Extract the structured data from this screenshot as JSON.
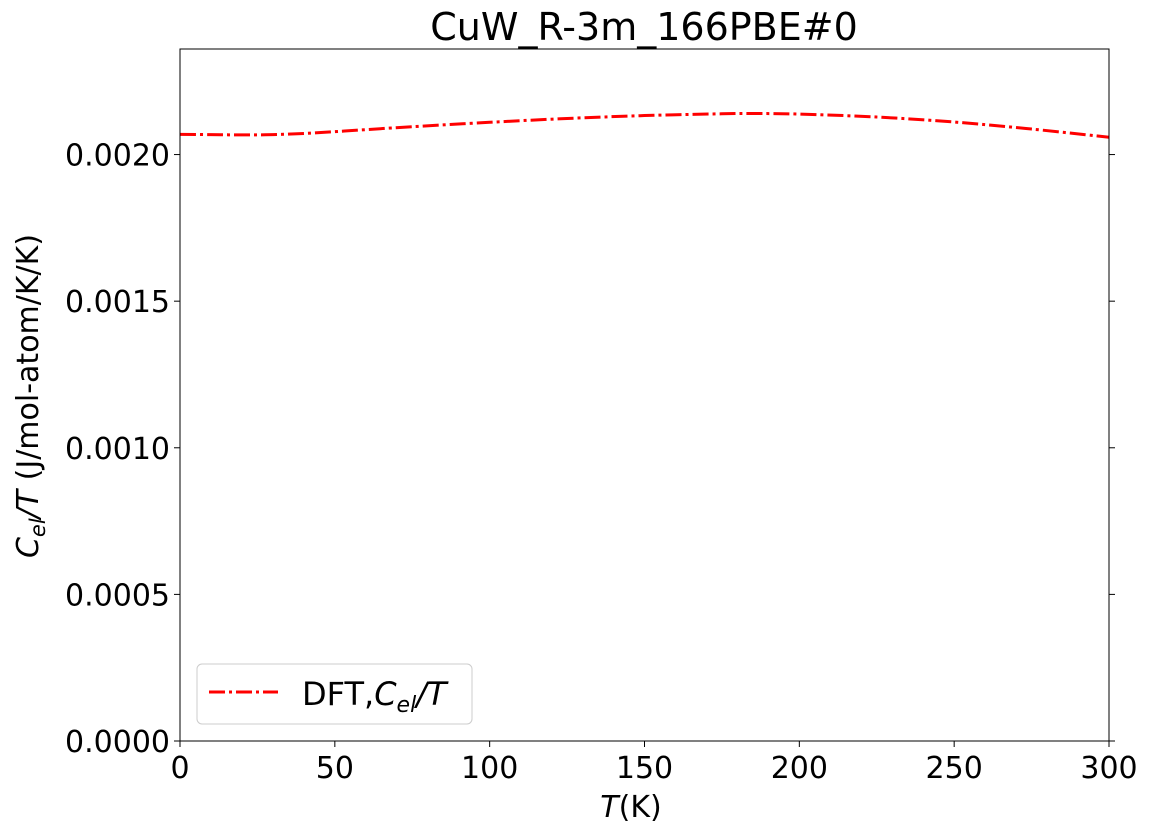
{
  "chart_data": {
    "type": "line",
    "title": "CuW_R-3m_166PBE#0",
    "xlabel": {
      "main": "T",
      "unit": "(K)"
    },
    "ylabel": {
      "c": "C",
      "sub": "el",
      "rest": "/T",
      "unit": " (J/mol-atom/K/K)"
    },
    "xlim": [
      0,
      300
    ],
    "ylim": [
      0,
      0.00236
    ],
    "xticks": [
      0,
      50,
      100,
      150,
      200,
      250,
      300
    ],
    "xtick_labels": [
      "0",
      "50",
      "100",
      "150",
      "200",
      "250",
      "300"
    ],
    "yticks": [
      0,
      0.0005,
      0.001,
      0.0015,
      0.002
    ],
    "ytick_labels": [
      "0.0000",
      "0.0005",
      "0.0010",
      "0.0015",
      "0.0020"
    ],
    "grid": false,
    "legend_position": "lower-left",
    "series": [
      {
        "name": "DFT,C_el/T",
        "legend": {
          "prefix": "DFT,",
          "c": "C",
          "sub": "el",
          "rest": "/T"
        },
        "color": "#ff0000",
        "style": "dash-dot",
        "x": [
          0,
          10,
          20,
          30,
          40,
          50,
          60,
          75,
          100,
          125,
          150,
          175,
          185,
          200,
          225,
          250,
          275,
          300
        ],
        "y": [
          0.002069,
          0.002068,
          0.002067,
          0.002068,
          0.002072,
          0.002078,
          0.002085,
          0.002095,
          0.00211,
          0.002123,
          0.002133,
          0.002139,
          0.00214,
          0.002138,
          0.002128,
          0.002111,
          0.002087,
          0.002059
        ]
      }
    ]
  }
}
